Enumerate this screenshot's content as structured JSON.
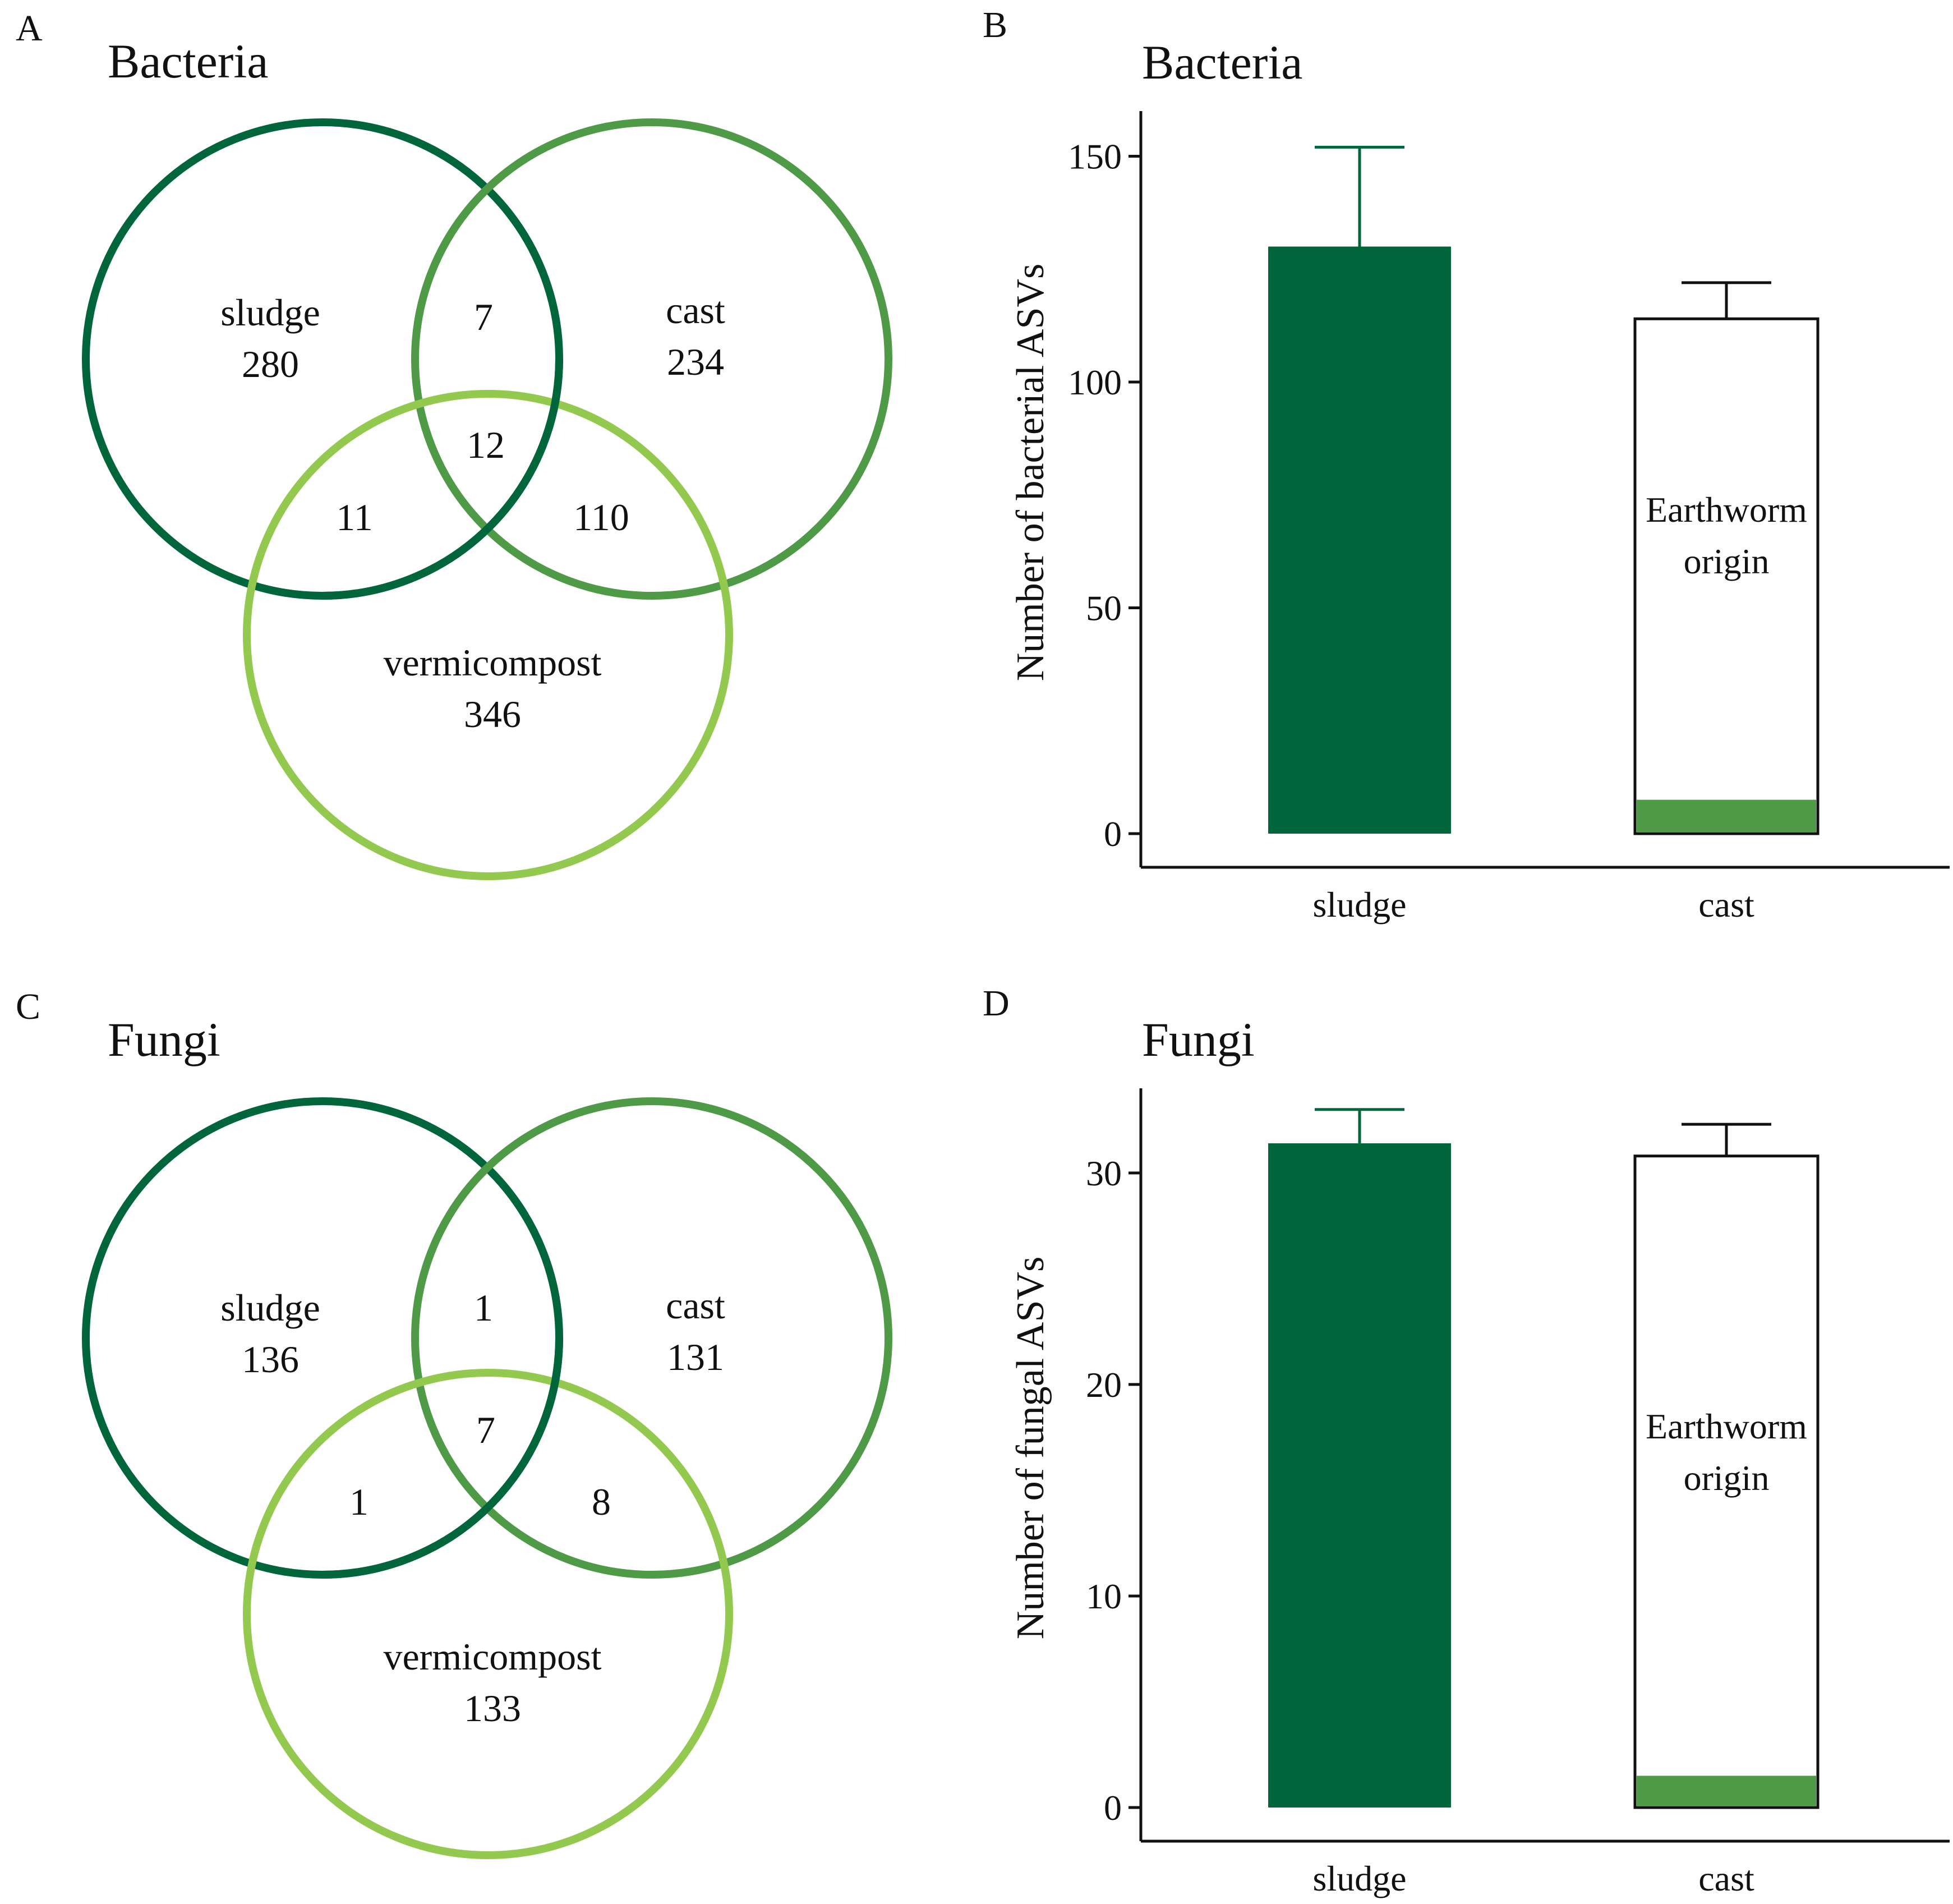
{
  "colors": {
    "sludge": "#02663c",
    "cast": "#4f9a46",
    "vermicompost": "#93c94e",
    "axis": "#111111",
    "white": "#ffffff"
  },
  "panels": {
    "A": {
      "letter": "A",
      "title": "Bacteria"
    },
    "B": {
      "letter": "B",
      "title": "Bacteria"
    },
    "C": {
      "letter": "C",
      "title": "Fungi"
    },
    "D": {
      "letter": "D",
      "title": "Fungi"
    }
  },
  "chart_data": [
    {
      "panel": "A",
      "type": "venn",
      "title": "Bacteria",
      "sets": [
        "sludge",
        "cast",
        "vermicompost"
      ],
      "regions": {
        "sludge_only": {
          "label": "sludge",
          "value": "280"
        },
        "cast_only": {
          "label": "cast",
          "value": "234"
        },
        "vermicompost_only": {
          "label": "vermicompost",
          "value": "346"
        },
        "sludge_cast": "7",
        "sludge_vermicompost": "11",
        "cast_vermicompost": "110",
        "all_three": "12"
      }
    },
    {
      "panel": "B",
      "type": "bar",
      "title": "Bacteria",
      "ylabel": "Number of bacterial ASVs",
      "xlabel": "",
      "categories": [
        "sludge",
        "cast"
      ],
      "values": [
        130,
        114
      ],
      "error_upper": [
        152,
        122
      ],
      "overlay": {
        "category": "cast",
        "value": 7.5,
        "label": "Earthworm origin",
        "label_lines": [
          "Earthworm",
          "origin"
        ]
      },
      "ylim": [
        0,
        160
      ],
      "yticks": [
        "0",
        "50",
        "100",
        "150"
      ],
      "ytick_values": [
        0,
        50,
        100,
        150
      ]
    },
    {
      "panel": "C",
      "type": "venn",
      "title": "Fungi",
      "sets": [
        "sludge",
        "cast",
        "vermicompost"
      ],
      "regions": {
        "sludge_only": {
          "label": "sludge",
          "value": "136"
        },
        "cast_only": {
          "label": "cast",
          "value": "131"
        },
        "vermicompost_only": {
          "label": "vermicompost",
          "value": "133"
        },
        "sludge_cast": "1",
        "sludge_vermicompost": "1",
        "cast_vermicompost": "8",
        "all_three": "7"
      }
    },
    {
      "panel": "D",
      "type": "bar",
      "title": "Fungi",
      "ylabel": "Number of fungal ASVs",
      "xlabel": "",
      "categories": [
        "sludge",
        "cast"
      ],
      "values": [
        31.4,
        30.8
      ],
      "error_upper": [
        33.0,
        32.3
      ],
      "overlay": {
        "category": "cast",
        "value": 1.5,
        "label": "Earthworm origin",
        "label_lines": [
          "Earthworm",
          "origin"
        ]
      },
      "ylim": [
        0,
        34
      ],
      "yticks": [
        "0",
        "10",
        "20",
        "30"
      ],
      "ytick_values": [
        0,
        10,
        20,
        30
      ]
    }
  ]
}
